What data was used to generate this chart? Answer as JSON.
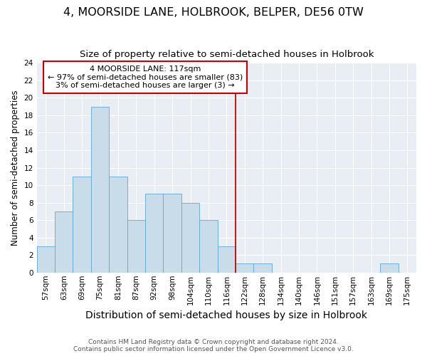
{
  "title": "4, MOORSIDE LANE, HOLBROOK, BELPER, DE56 0TW",
  "subtitle": "Size of property relative to semi-detached houses in Holbrook",
  "xlabel": "Distribution of semi-detached houses by size in Holbrook",
  "ylabel": "Number of semi-detached properties",
  "categories": [
    "57sqm",
    "63sqm",
    "69sqm",
    "75sqm",
    "81sqm",
    "87sqm",
    "92sqm",
    "98sqm",
    "104sqm",
    "110sqm",
    "116sqm",
    "122sqm",
    "128sqm",
    "134sqm",
    "140sqm",
    "146sqm",
    "151sqm",
    "157sqm",
    "163sqm",
    "169sqm",
    "175sqm"
  ],
  "values": [
    3,
    7,
    11,
    19,
    11,
    6,
    9,
    9,
    8,
    6,
    3,
    1,
    1,
    0,
    0,
    0,
    0,
    0,
    0,
    1,
    0
  ],
  "bar_color": "#c8dcea",
  "bar_edgecolor": "#5fa8d3",
  "vline_color": "#cc0000",
  "annotation_title": "4 MOORSIDE LANE: 117sqm",
  "annotation_line1": "← 97% of semi-detached houses are smaller (83)",
  "annotation_line2": "3% of semi-detached houses are larger (3) →",
  "annotation_box_edgecolor": "#cc0000",
  "annotation_box_fill": "#ffffff",
  "ylim": [
    0,
    24
  ],
  "yticks": [
    0,
    2,
    4,
    6,
    8,
    10,
    12,
    14,
    16,
    18,
    20,
    22,
    24
  ],
  "ax_facecolor": "#e8eef4",
  "grid_color": "#ffffff",
  "footer_line1": "Contains HM Land Registry data © Crown copyright and database right 2024.",
  "footer_line2": "Contains public sector information licensed under the Open Government Licence v3.0.",
  "title_fontsize": 11.5,
  "subtitle_fontsize": 9.5,
  "xlabel_fontsize": 10,
  "ylabel_fontsize": 8.5,
  "tick_fontsize": 7.5,
  "footer_fontsize": 6.5,
  "annotation_fontsize": 8
}
